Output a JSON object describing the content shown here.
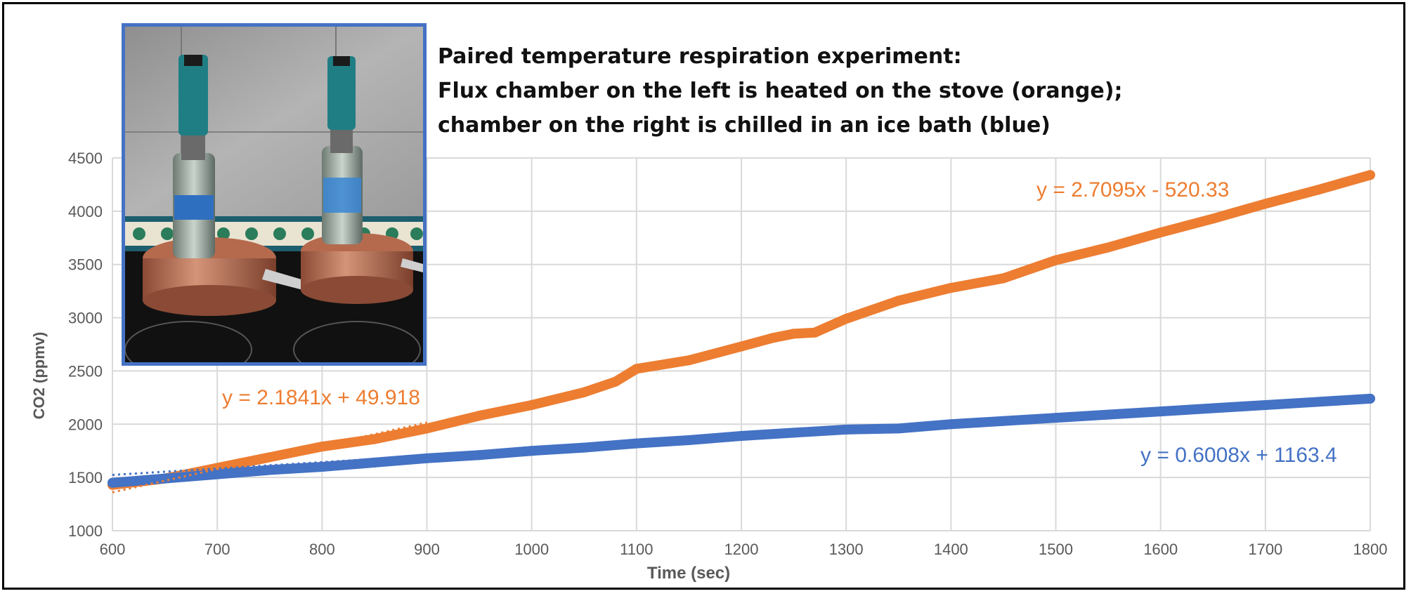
{
  "figure": {
    "title_lines": [
      "Paired temperature respiration experiment:",
      "Flux chamber on the left is heated on the stove (orange);",
      "chamber on the right is chilled in an ice bath (blue)"
    ],
    "photo_description_icon": "photo-of-two-flux-chambers"
  },
  "colors": {
    "heated": "#ED7D31",
    "chilled": "#4472C4",
    "grid": "#D9D9D9",
    "axis_text": "#595959",
    "photo_border": "#4472C4"
  },
  "chart_data": {
    "type": "scatter",
    "xlabel": "Time (sec)",
    "ylabel": "CO2 (ppmv)",
    "xlim": [
      600,
      1800
    ],
    "ylim": [
      1000,
      4500
    ],
    "x_ticks": [
      600,
      700,
      800,
      900,
      1000,
      1100,
      1200,
      1300,
      1400,
      1500,
      1600,
      1700,
      1800
    ],
    "y_ticks": [
      1000,
      1500,
      2000,
      2500,
      3000,
      3500,
      4000,
      4500
    ],
    "grid": true,
    "series": [
      {
        "color": "#ED7D31",
        "x": [
          600,
          650,
          700,
          750,
          800,
          850,
          900,
          950,
          1000,
          1050,
          1080,
          1100,
          1150,
          1200,
          1230,
          1250,
          1270,
          1300,
          1350,
          1400,
          1450,
          1500,
          1550,
          1600,
          1650,
          1700,
          1750,
          1800
        ],
        "y": [
          1430,
          1490,
          1590,
          1690,
          1790,
          1860,
          1960,
          2080,
          2180,
          2300,
          2400,
          2520,
          2600,
          2730,
          2810,
          2850,
          2860,
          2990,
          3160,
          3280,
          3370,
          3540,
          3660,
          3800,
          3930,
          4070,
          4200,
          4340
        ],
        "trendline": {
          "slope": 2.7095,
          "intercept": -520.33,
          "x_range": [
            1450,
            1800
          ],
          "label": "y = 2.7095x - 520.33"
        },
        "trendline2": {
          "slope": 2.1841,
          "intercept": 49.918,
          "x_range": [
            600,
            900
          ],
          "label": "y = 2.1841x + 49.918"
        }
      },
      {
        "color": "#4472C4",
        "x": [
          600,
          650,
          700,
          750,
          800,
          850,
          900,
          950,
          1000,
          1050,
          1100,
          1150,
          1200,
          1250,
          1300,
          1350,
          1400,
          1450,
          1500,
          1550,
          1600,
          1650,
          1700,
          1750,
          1800
        ],
        "y": [
          1450,
          1490,
          1530,
          1570,
          1600,
          1640,
          1680,
          1710,
          1750,
          1780,
          1820,
          1850,
          1890,
          1920,
          1950,
          1960,
          2000,
          2030,
          2060,
          2090,
          2120,
          2150,
          2180,
          2210,
          2240
        ],
        "trendline": {
          "slope": 0.6008,
          "intercept": 1163.4,
          "x_range": [
            600,
            1800
          ],
          "label": "y = 0.6008x + 1163.4"
        }
      }
    ]
  }
}
